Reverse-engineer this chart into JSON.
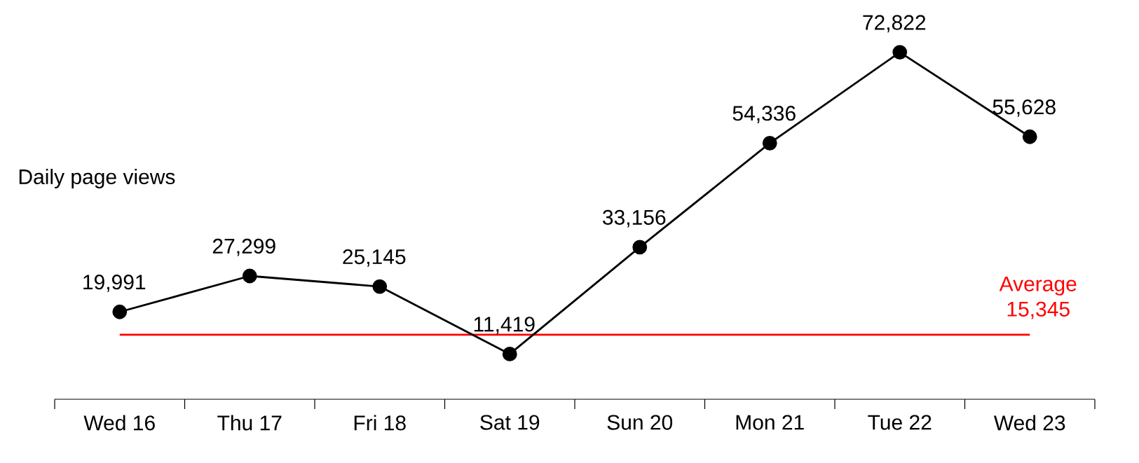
{
  "chart_data": {
    "type": "line",
    "ylabel": "Daily page views",
    "categories": [
      "Wed 16",
      "Thu 17",
      "Fri 18",
      "Sat 19",
      "Sun 20",
      "Mon 21",
      "Tue 22",
      "Wed 23"
    ],
    "values": [
      19991,
      27299,
      25145,
      11419,
      33156,
      54336,
      72822,
      55628
    ],
    "value_labels": [
      "19,991",
      "27,299",
      "25,145",
      "11,419",
      "33,156",
      "54,336",
      "72,822",
      "55,628"
    ],
    "color": "#000000",
    "marker": "circle",
    "line_style": "solid",
    "tick_labels": "x",
    "ref_lines": [
      {
        "axis": "y",
        "value": 15345,
        "label": "Average 15,345",
        "color": "#ff0000"
      }
    ]
  }
}
